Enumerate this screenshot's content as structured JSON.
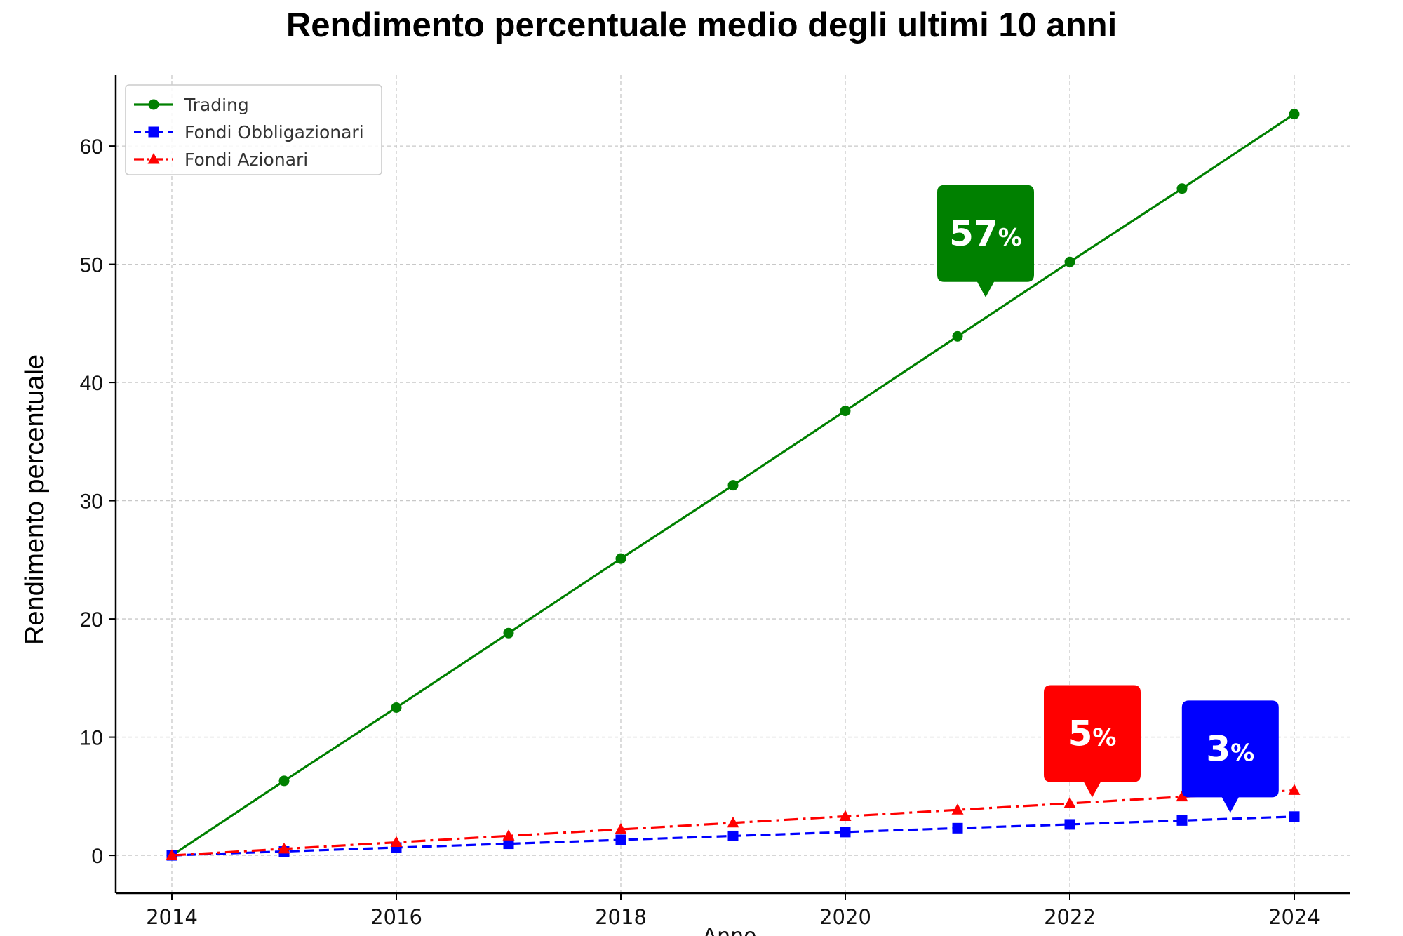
{
  "chart_data": {
    "type": "line",
    "title": "Rendimento percentuale medio degli ultimi 10 anni",
    "xlabel": "Anno",
    "ylabel": "Rendimento percentuale",
    "x": [
      2014,
      2015,
      2016,
      2017,
      2018,
      2019,
      2020,
      2021,
      2022,
      2023,
      2024
    ],
    "xlim": [
      2013.5,
      2024.5
    ],
    "ylim": [
      -3.2,
      66
    ],
    "xticks": [
      2014,
      2016,
      2018,
      2020,
      2022,
      2024
    ],
    "yticks": [
      0,
      10,
      20,
      30,
      40,
      50,
      60
    ],
    "grid": true,
    "legend_position": "upper-left",
    "series": [
      {
        "name": "Trading",
        "color": "#008000",
        "line_style": "solid",
        "marker": "circle",
        "values": [
          0,
          6.3,
          12.5,
          18.8,
          25.1,
          31.3,
          37.6,
          43.9,
          50.2,
          56.4,
          62.7
        ]
      },
      {
        "name": "Fondi Obbligazionari",
        "color": "#0000ff",
        "line_style": "dashed",
        "marker": "square",
        "values": [
          0,
          0.33,
          0.66,
          0.98,
          1.31,
          1.64,
          1.97,
          2.3,
          2.62,
          2.95,
          3.28
        ]
      },
      {
        "name": "Fondi Azionari",
        "color": "#ff0000",
        "line_style": "dashdot",
        "marker": "triangle",
        "values": [
          0,
          0.55,
          1.1,
          1.65,
          2.2,
          2.75,
          3.3,
          3.85,
          4.4,
          4.95,
          5.5
        ]
      }
    ],
    "annotations": [
      {
        "number": "57",
        "unit": "%",
        "color": "#008000",
        "anchor_x": 2021.25,
        "anchor_y": 47.2
      },
      {
        "number": "5",
        "unit": "%",
        "color": "#ff0000",
        "anchor_x": 2022.2,
        "anchor_y": 4.9
      },
      {
        "number": "3",
        "unit": "%",
        "color": "#0000ff",
        "anchor_x": 2023.43,
        "anchor_y": 3.6
      }
    ]
  }
}
